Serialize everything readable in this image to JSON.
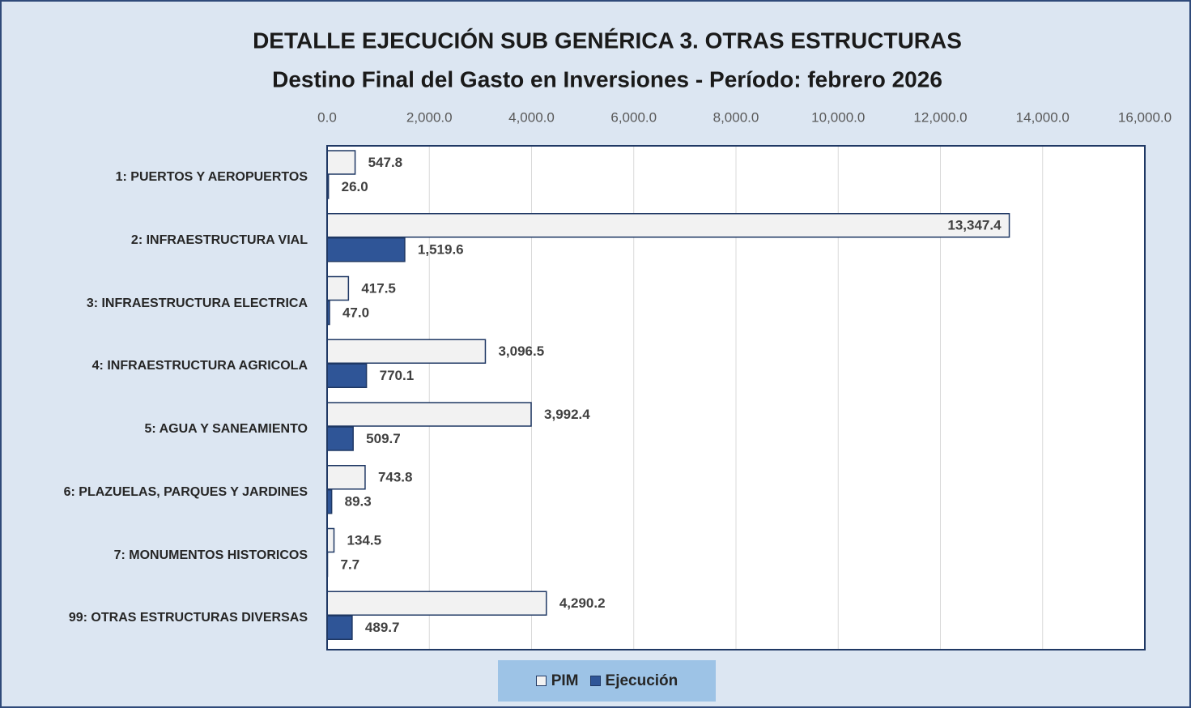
{
  "chart_data": {
    "type": "bar",
    "orientation": "horizontal",
    "title": "DETALLE EJECUCIÓN SUB GENÉRICA 3. OTRAS ESTRUCTURAS",
    "subtitle": "Destino Final del Gasto en Inversiones - Período:  febrero 2026",
    "categories": [
      "1: PUERTOS Y AEROPUERTOS",
      "2: INFRAESTRUCTURA VIAL",
      "3: INFRAESTRUCTURA ELECTRICA",
      "4: INFRAESTRUCTURA AGRICOLA",
      "5: AGUA Y SANEAMIENTO",
      "6: PLAZUELAS, PARQUES Y JARDINES",
      "7: MONUMENTOS HISTORICOS",
      "99: OTRAS ESTRUCTURAS DIVERSAS"
    ],
    "series": [
      {
        "name": "PIM",
        "color": "#f2f2f2",
        "values": [
          547.8,
          13347.4,
          417.5,
          3096.5,
          3992.4,
          743.8,
          134.5,
          4290.2
        ],
        "value_labels": [
          "547.8",
          "13,347.4",
          "417.5",
          "3,096.5",
          "3,992.4",
          "743.8",
          "134.5",
          "4,290.2"
        ]
      },
      {
        "name": "Ejecución",
        "color": "#2f5597",
        "values": [
          26.0,
          1519.6,
          47.0,
          770.1,
          509.7,
          89.3,
          7.7,
          489.7
        ],
        "value_labels": [
          "26.0",
          "1,519.6",
          "47.0",
          "770.1",
          "509.7",
          "89.3",
          "7.7",
          "489.7"
        ]
      }
    ],
    "xlim": [
      0,
      16000
    ],
    "xticks": [
      {
        "value": 0,
        "label": "0.0"
      },
      {
        "value": 2000,
        "label": "2,000.0"
      },
      {
        "value": 4000,
        "label": "4,000.0"
      },
      {
        "value": 6000,
        "label": "6,000.0"
      },
      {
        "value": 8000,
        "label": "8,000.0"
      },
      {
        "value": 10000,
        "label": "10,000.0"
      },
      {
        "value": 12000,
        "label": "12,000.0"
      },
      {
        "value": 14000,
        "label": "14,000.0"
      },
      {
        "value": 16000,
        "label": "16,000.0"
      }
    ],
    "grid": true,
    "legend": "bottom"
  }
}
